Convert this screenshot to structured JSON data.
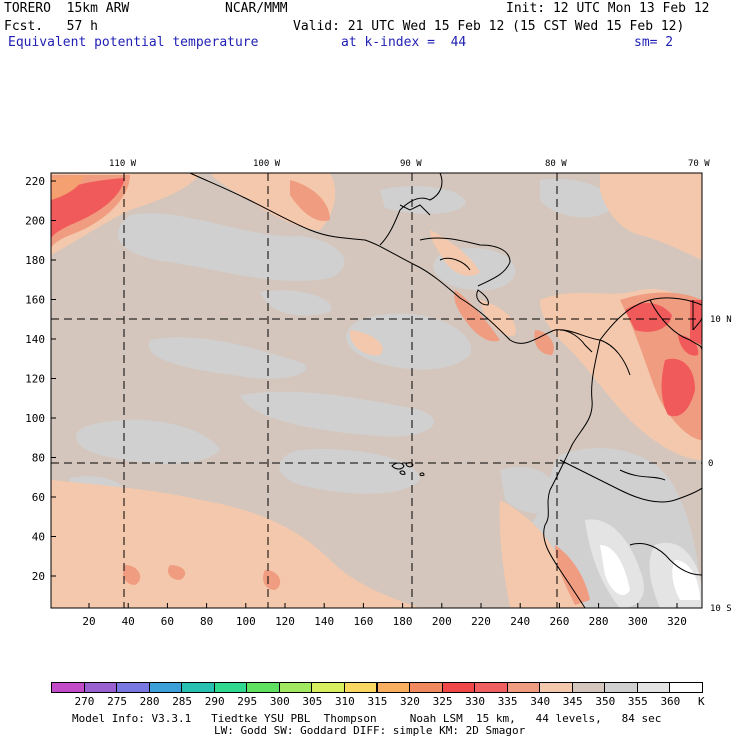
{
  "header": {
    "model": "TORERO  15km ARW",
    "org": "NCAR/MMM",
    "init": "Init: 12 UTC Mon 13 Feb 12",
    "fcst": "Fcst.   57 h",
    "valid": "Valid: 21 UTC Wed 15 Feb 12 (15 CST Wed 15 Feb 12)",
    "field": "Equivalent potential temperature",
    "level": "at k-index =  44",
    "smoothing": "sm= 2"
  },
  "map": {
    "lon_labels": [
      "110 W",
      "100 W",
      "90 W",
      "80 W",
      "70 W"
    ],
    "lat_labels": [
      "10 N",
      "0",
      "10 S"
    ],
    "y_ticks": [
      "220",
      "200",
      "180",
      "160",
      "140",
      "120",
      "100",
      "80",
      "60",
      "40",
      "20"
    ],
    "x_ticks": [
      "20",
      "40",
      "60",
      "80",
      "100",
      "120",
      "140",
      "160",
      "180",
      "200",
      "220",
      "240",
      "260",
      "280",
      "300",
      "320"
    ]
  },
  "colorbar": {
    "labels": [
      "270",
      "275",
      "280",
      "285",
      "290",
      "295",
      "300",
      "305",
      "310",
      "315",
      "320",
      "325",
      "330",
      "335",
      "340",
      "345",
      "350",
      "355",
      "360"
    ],
    "unit": "K",
    "colors": [
      "#c24cc8",
      "#9a60d0",
      "#7878e0",
      "#3ca0d8",
      "#28c0b0",
      "#30d890",
      "#60e060",
      "#a0e860",
      "#d8f060",
      "#f8d860",
      "#f8b060",
      "#f08860",
      "#f04848",
      "#f06060",
      "#f09c80",
      "#f4c8ac",
      "#d4c6bc",
      "#d0d0d0",
      "#e4e4e4",
      "#ffffff"
    ]
  },
  "footer": {
    "line1": "Model Info: V3.3.1   Tiedtke YSU PBL  Thompson     Noah LSM  15 km,   44 levels,   84 sec",
    "line2": "LW: Godd SW: Goddard DIFF: simple KM: 2D Smagor"
  }
}
